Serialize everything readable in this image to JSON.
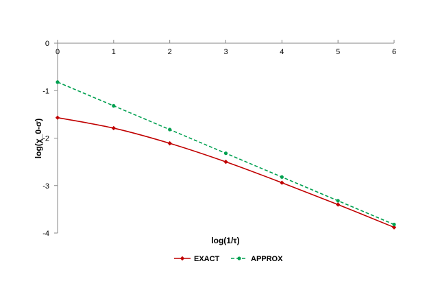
{
  "chart_data": {
    "type": "line",
    "title": "",
    "xlabel": "log(1/τ)",
    "ylabel": "log(χ_0-σ)",
    "xlim": [
      0,
      6
    ],
    "ylim": [
      -4,
      0
    ],
    "x_ticks": [
      "0",
      "1",
      "2",
      "3",
      "4",
      "5",
      "6"
    ],
    "y_ticks": [
      "0",
      "-1",
      "-2",
      "-3",
      "-4"
    ],
    "x_axis_position": "top",
    "grid": false,
    "legend_position": "bottom",
    "series": [
      {
        "name": "EXACT",
        "color": "#c00000",
        "line_style": "solid",
        "marker": "diamond",
        "x": [
          0,
          1,
          2,
          3,
          4,
          5,
          6
        ],
        "y": [
          -1.57,
          -1.79,
          -2.11,
          -2.5,
          -2.94,
          -3.4,
          -3.88
        ]
      },
      {
        "name": "APPROX",
        "color": "#00a050",
        "line_style": "dashed",
        "marker": "circle",
        "x": [
          0,
          1,
          2,
          3,
          4,
          5,
          6
        ],
        "y": [
          -0.82,
          -1.32,
          -1.82,
          -2.32,
          -2.82,
          -3.32,
          -3.82
        ]
      }
    ]
  }
}
